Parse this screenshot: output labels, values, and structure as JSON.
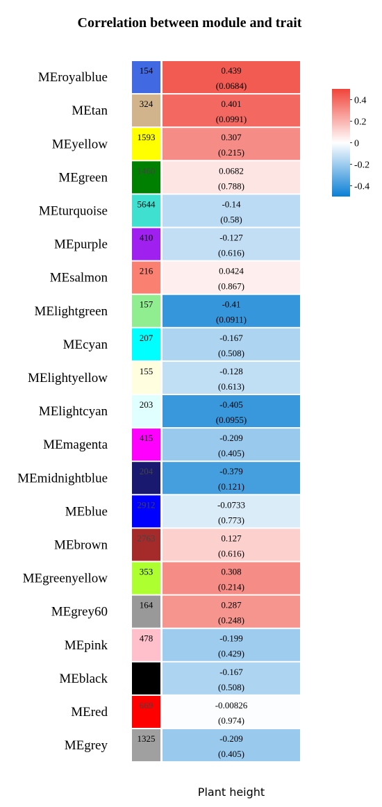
{
  "chart_data": {
    "type": "heatmap",
    "title": "Correlation between module and trait",
    "xlabel": "Plant height",
    "color_scale": {
      "min": -0.5,
      "max": 0.5,
      "low_color": "#0a7fd4",
      "mid_color": "#ffffff",
      "high_color": "#f0443a",
      "ticks": [
        "0.4",
        "0.2",
        "0",
        "-0.2",
        "-0.4"
      ],
      "tick_values": [
        0.4,
        0.2,
        0,
        -0.2,
        -0.4
      ]
    },
    "rows": [
      {
        "module": "MEroyalblue",
        "color": "#4169e1",
        "size": "154",
        "r": 0.439,
        "r_label": "0.439",
        "p_label": "(0.0684)"
      },
      {
        "module": "MEtan",
        "color": "#d2b48c",
        "size": "324",
        "r": 0.401,
        "r_label": "0.401",
        "p_label": "(0.0991)"
      },
      {
        "module": "MEyellow",
        "color": "#ffff00",
        "size": "1593",
        "r": 0.307,
        "r_label": "0.307",
        "p_label": "(0.215)"
      },
      {
        "module": "MEgreen",
        "color": "#008000",
        "size": "1460",
        "r": 0.0682,
        "r_label": "0.0682",
        "p_label": "(0.788)"
      },
      {
        "module": "MEturquoise",
        "color": "#40e0d0",
        "size": "5644",
        "r": -0.14,
        "r_label": "-0.14",
        "p_label": "(0.58)"
      },
      {
        "module": "MEpurple",
        "color": "#a020f0",
        "size": "410",
        "r": -0.127,
        "r_label": "-0.127",
        "p_label": "(0.616)"
      },
      {
        "module": "MEsalmon",
        "color": "#fa8072",
        "size": "216",
        "r": 0.0424,
        "r_label": "0.0424",
        "p_label": "(0.867)"
      },
      {
        "module": "MElightgreen",
        "color": "#90ee90",
        "size": "157",
        "r": -0.41,
        "r_label": "-0.41",
        "p_label": "(0.0911)"
      },
      {
        "module": "MEcyan",
        "color": "#00ffff",
        "size": "207",
        "r": -0.167,
        "r_label": "-0.167",
        "p_label": "(0.508)"
      },
      {
        "module": "MElightyellow",
        "color": "#ffffe0",
        "size": "155",
        "r": -0.128,
        "r_label": "-0.128",
        "p_label": "(0.613)"
      },
      {
        "module": "MElightcyan",
        "color": "#e0ffff",
        "size": "203",
        "r": -0.405,
        "r_label": "-0.405",
        "p_label": "(0.0955)"
      },
      {
        "module": "MEmagenta",
        "color": "#ff00ff",
        "size": "415",
        "r": -0.209,
        "r_label": "-0.209",
        "p_label": "(0.405)"
      },
      {
        "module": "MEmidnightblue",
        "color": "#191970",
        "size": "204",
        "r": -0.379,
        "r_label": "-0.379",
        "p_label": "(0.121)"
      },
      {
        "module": "MEblue",
        "color": "#0000ff",
        "size": "2912",
        "r": -0.0733,
        "r_label": "-0.0733",
        "p_label": "(0.773)"
      },
      {
        "module": "MEbrown",
        "color": "#a52a2a",
        "size": "2763",
        "r": 0.127,
        "r_label": "0.127",
        "p_label": "(0.616)"
      },
      {
        "module": "MEgreenyellow",
        "color": "#adff2f",
        "size": "353",
        "r": 0.308,
        "r_label": "0.308",
        "p_label": "(0.214)"
      },
      {
        "module": "MEgrey60",
        "color": "#999999",
        "size": "164",
        "r": 0.287,
        "r_label": "0.287",
        "p_label": "(0.248)"
      },
      {
        "module": "MEpink",
        "color": "#ffc0cb",
        "size": "478",
        "r": -0.199,
        "r_label": "-0.199",
        "p_label": "(0.429)"
      },
      {
        "module": "MEblack",
        "color": "#000000",
        "size": "",
        "r": -0.167,
        "r_label": "-0.167",
        "p_label": "(0.508)"
      },
      {
        "module": "MEred",
        "color": "#ff0000",
        "size": "669",
        "r": -0.00826,
        "r_label": "-0.00826",
        "p_label": "(0.974)"
      },
      {
        "module": "MEgrey",
        "color": "#a0a0a0",
        "size": "1325",
        "r": -0.209,
        "r_label": "-0.209",
        "p_label": "(0.405)"
      }
    ]
  }
}
